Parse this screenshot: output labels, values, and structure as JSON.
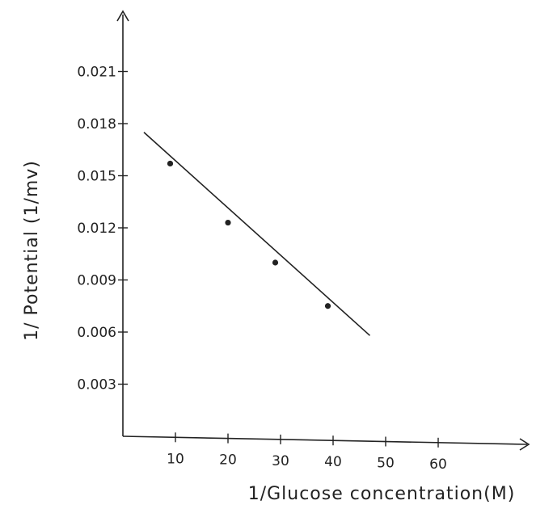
{
  "chart_data": {
    "type": "scatter",
    "xlabel": "1/Glucose concentration(M)",
    "ylabel": "1/ Potential (1/mv)",
    "x_ticks": [
      10,
      20,
      30,
      40,
      50,
      60
    ],
    "y_ticks": [
      0.003,
      0.006,
      0.009,
      0.012,
      0.015,
      0.018,
      0.021
    ],
    "x_tick_labels": [
      "10",
      "20",
      "30",
      "40",
      "50",
      "60"
    ],
    "y_tick_labels": [
      "0.003",
      "0.006",
      "0.009",
      "0.012",
      "0.015",
      "0.018",
      "0.021"
    ],
    "xlim": [
      0,
      70
    ],
    "ylim": [
      0,
      0.024
    ],
    "grid": false,
    "series": [
      {
        "points": [
          {
            "x": 9,
            "y": 0.0157
          },
          {
            "x": 20,
            "y": 0.0123
          },
          {
            "x": 29,
            "y": 0.01
          },
          {
            "x": 39,
            "y": 0.0075
          }
        ]
      }
    ],
    "trendline": {
      "x": [
        4,
        47
      ],
      "y": [
        0.0175,
        0.0058
      ]
    }
  }
}
